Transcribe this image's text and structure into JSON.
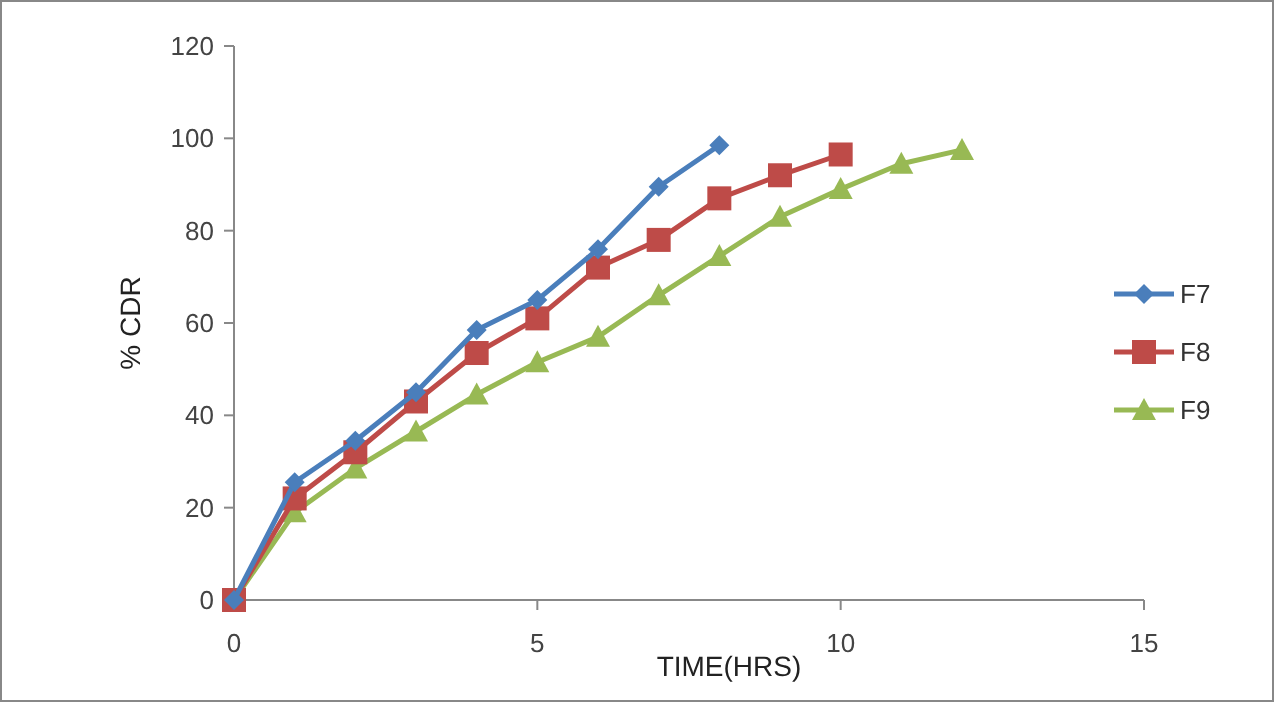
{
  "chart_data": {
    "type": "line",
    "xlabel": "TIME(HRS)",
    "ylabel": "% CDR",
    "xlim": [
      0,
      15
    ],
    "xticks": [
      0,
      5,
      10,
      15
    ],
    "ylim": [
      0,
      120
    ],
    "yticks": [
      0,
      20,
      40,
      60,
      80,
      100,
      120
    ],
    "grid": false,
    "legend": "right",
    "series": [
      {
        "name": "F7",
        "color": "#4a7ebb",
        "marker": "diamond",
        "x": [
          0,
          1,
          2,
          3,
          4,
          5,
          6,
          7,
          8
        ],
        "values": [
          0,
          25.5,
          34.5,
          45,
          58.5,
          65,
          76,
          89.5,
          98.5
        ]
      },
      {
        "name": "F8",
        "color": "#be4b48",
        "marker": "square",
        "x": [
          0,
          1,
          2,
          3,
          4,
          5,
          6,
          7,
          8,
          9,
          10
        ],
        "values": [
          0,
          22,
          32,
          43,
          53.5,
          61,
          72,
          78,
          87,
          92,
          96.5
        ]
      },
      {
        "name": "F9",
        "color": "#98b954",
        "marker": "triangle",
        "x": [
          0,
          1,
          2,
          3,
          4,
          5,
          6,
          7,
          8,
          9,
          10,
          11,
          12
        ],
        "values": [
          0,
          19,
          28.5,
          36.5,
          44.5,
          51.5,
          57,
          66,
          74.5,
          83,
          89,
          94.5,
          97.5
        ]
      }
    ]
  }
}
